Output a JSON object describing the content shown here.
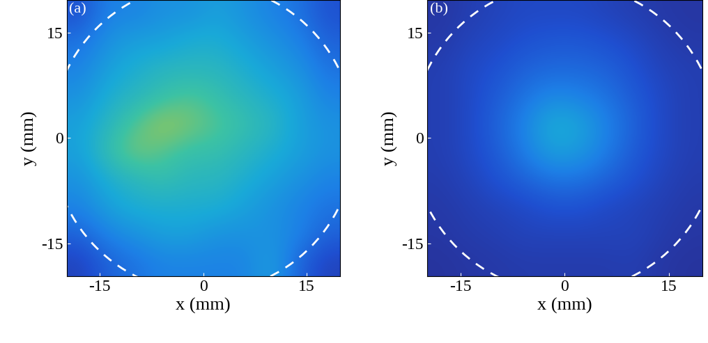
{
  "chart_data": [
    {
      "type": "heatmap",
      "title": "(a)",
      "x_label": "x (mm)",
      "y_label": "y (mm)",
      "xlim": [
        -19.8,
        19.8
      ],
      "ylim": [
        -19.7,
        19.7
      ],
      "xticks": [
        -15,
        0,
        15
      ],
      "yticks": [
        -15,
        0,
        15
      ],
      "circle_radius": 22,
      "color_range": [
        0,
        1
      ],
      "cells": [
        [
          0.15,
          0.3,
          0.3,
          0.35,
          0.35,
          0.4,
          0.35,
          0.3,
          0.25,
          0.15
        ],
        [
          0.25,
          0.35,
          0.4,
          0.4,
          0.45,
          0.45,
          0.4,
          0.35,
          0.3,
          0.2
        ],
        [
          0.3,
          0.4,
          0.45,
          0.5,
          0.5,
          0.5,
          0.45,
          0.4,
          0.35,
          0.25
        ],
        [
          0.35,
          0.45,
          0.5,
          0.55,
          0.6,
          0.55,
          0.5,
          0.45,
          0.4,
          0.3
        ],
        [
          0.4,
          0.5,
          0.6,
          0.7,
          0.65,
          0.6,
          0.55,
          0.5,
          0.4,
          0.35
        ],
        [
          0.4,
          0.55,
          0.65,
          0.6,
          0.55,
          0.55,
          0.5,
          0.45,
          0.4,
          0.35
        ],
        [
          0.35,
          0.45,
          0.5,
          0.55,
          0.5,
          0.5,
          0.45,
          0.4,
          0.35,
          0.3
        ],
        [
          0.3,
          0.4,
          0.45,
          0.45,
          0.45,
          0.45,
          0.4,
          0.35,
          0.3,
          0.25
        ],
        [
          0.2,
          0.3,
          0.35,
          0.4,
          0.4,
          0.35,
          0.35,
          0.35,
          0.3,
          0.2
        ],
        [
          0.1,
          0.2,
          0.25,
          0.3,
          0.3,
          0.3,
          0.3,
          0.4,
          0.2,
          0.1
        ]
      ]
    },
    {
      "type": "heatmap",
      "title": "(b)",
      "x_label": "x (mm)",
      "y_label": "y (mm)",
      "xlim": [
        -19.8,
        19.8
      ],
      "ylim": [
        -19.7,
        19.7
      ],
      "xticks": [
        -15,
        0,
        15
      ],
      "yticks": [
        -15,
        0,
        15
      ],
      "circle_radius": 22,
      "color_range": [
        0,
        1
      ],
      "cells": [
        [
          0.05,
          0.08,
          0.1,
          0.12,
          0.12,
          0.12,
          0.1,
          0.08,
          0.06,
          0.05
        ],
        [
          0.06,
          0.1,
          0.12,
          0.15,
          0.17,
          0.17,
          0.15,
          0.12,
          0.08,
          0.06
        ],
        [
          0.08,
          0.12,
          0.15,
          0.2,
          0.22,
          0.22,
          0.2,
          0.15,
          0.1,
          0.08
        ],
        [
          0.08,
          0.12,
          0.18,
          0.25,
          0.32,
          0.3,
          0.25,
          0.18,
          0.12,
          0.08
        ],
        [
          0.08,
          0.12,
          0.2,
          0.3,
          0.45,
          0.42,
          0.3,
          0.2,
          0.12,
          0.08
        ],
        [
          0.08,
          0.12,
          0.18,
          0.28,
          0.4,
          0.38,
          0.28,
          0.18,
          0.12,
          0.08
        ],
        [
          0.07,
          0.1,
          0.15,
          0.2,
          0.25,
          0.25,
          0.2,
          0.15,
          0.1,
          0.07
        ],
        [
          0.06,
          0.08,
          0.1,
          0.12,
          0.15,
          0.15,
          0.12,
          0.1,
          0.08,
          0.06
        ],
        [
          0.05,
          0.07,
          0.08,
          0.1,
          0.1,
          0.1,
          0.1,
          0.1,
          0.07,
          0.05
        ],
        [
          0.04,
          0.05,
          0.06,
          0.07,
          0.07,
          0.07,
          0.07,
          0.08,
          0.05,
          0.04
        ]
      ]
    }
  ]
}
